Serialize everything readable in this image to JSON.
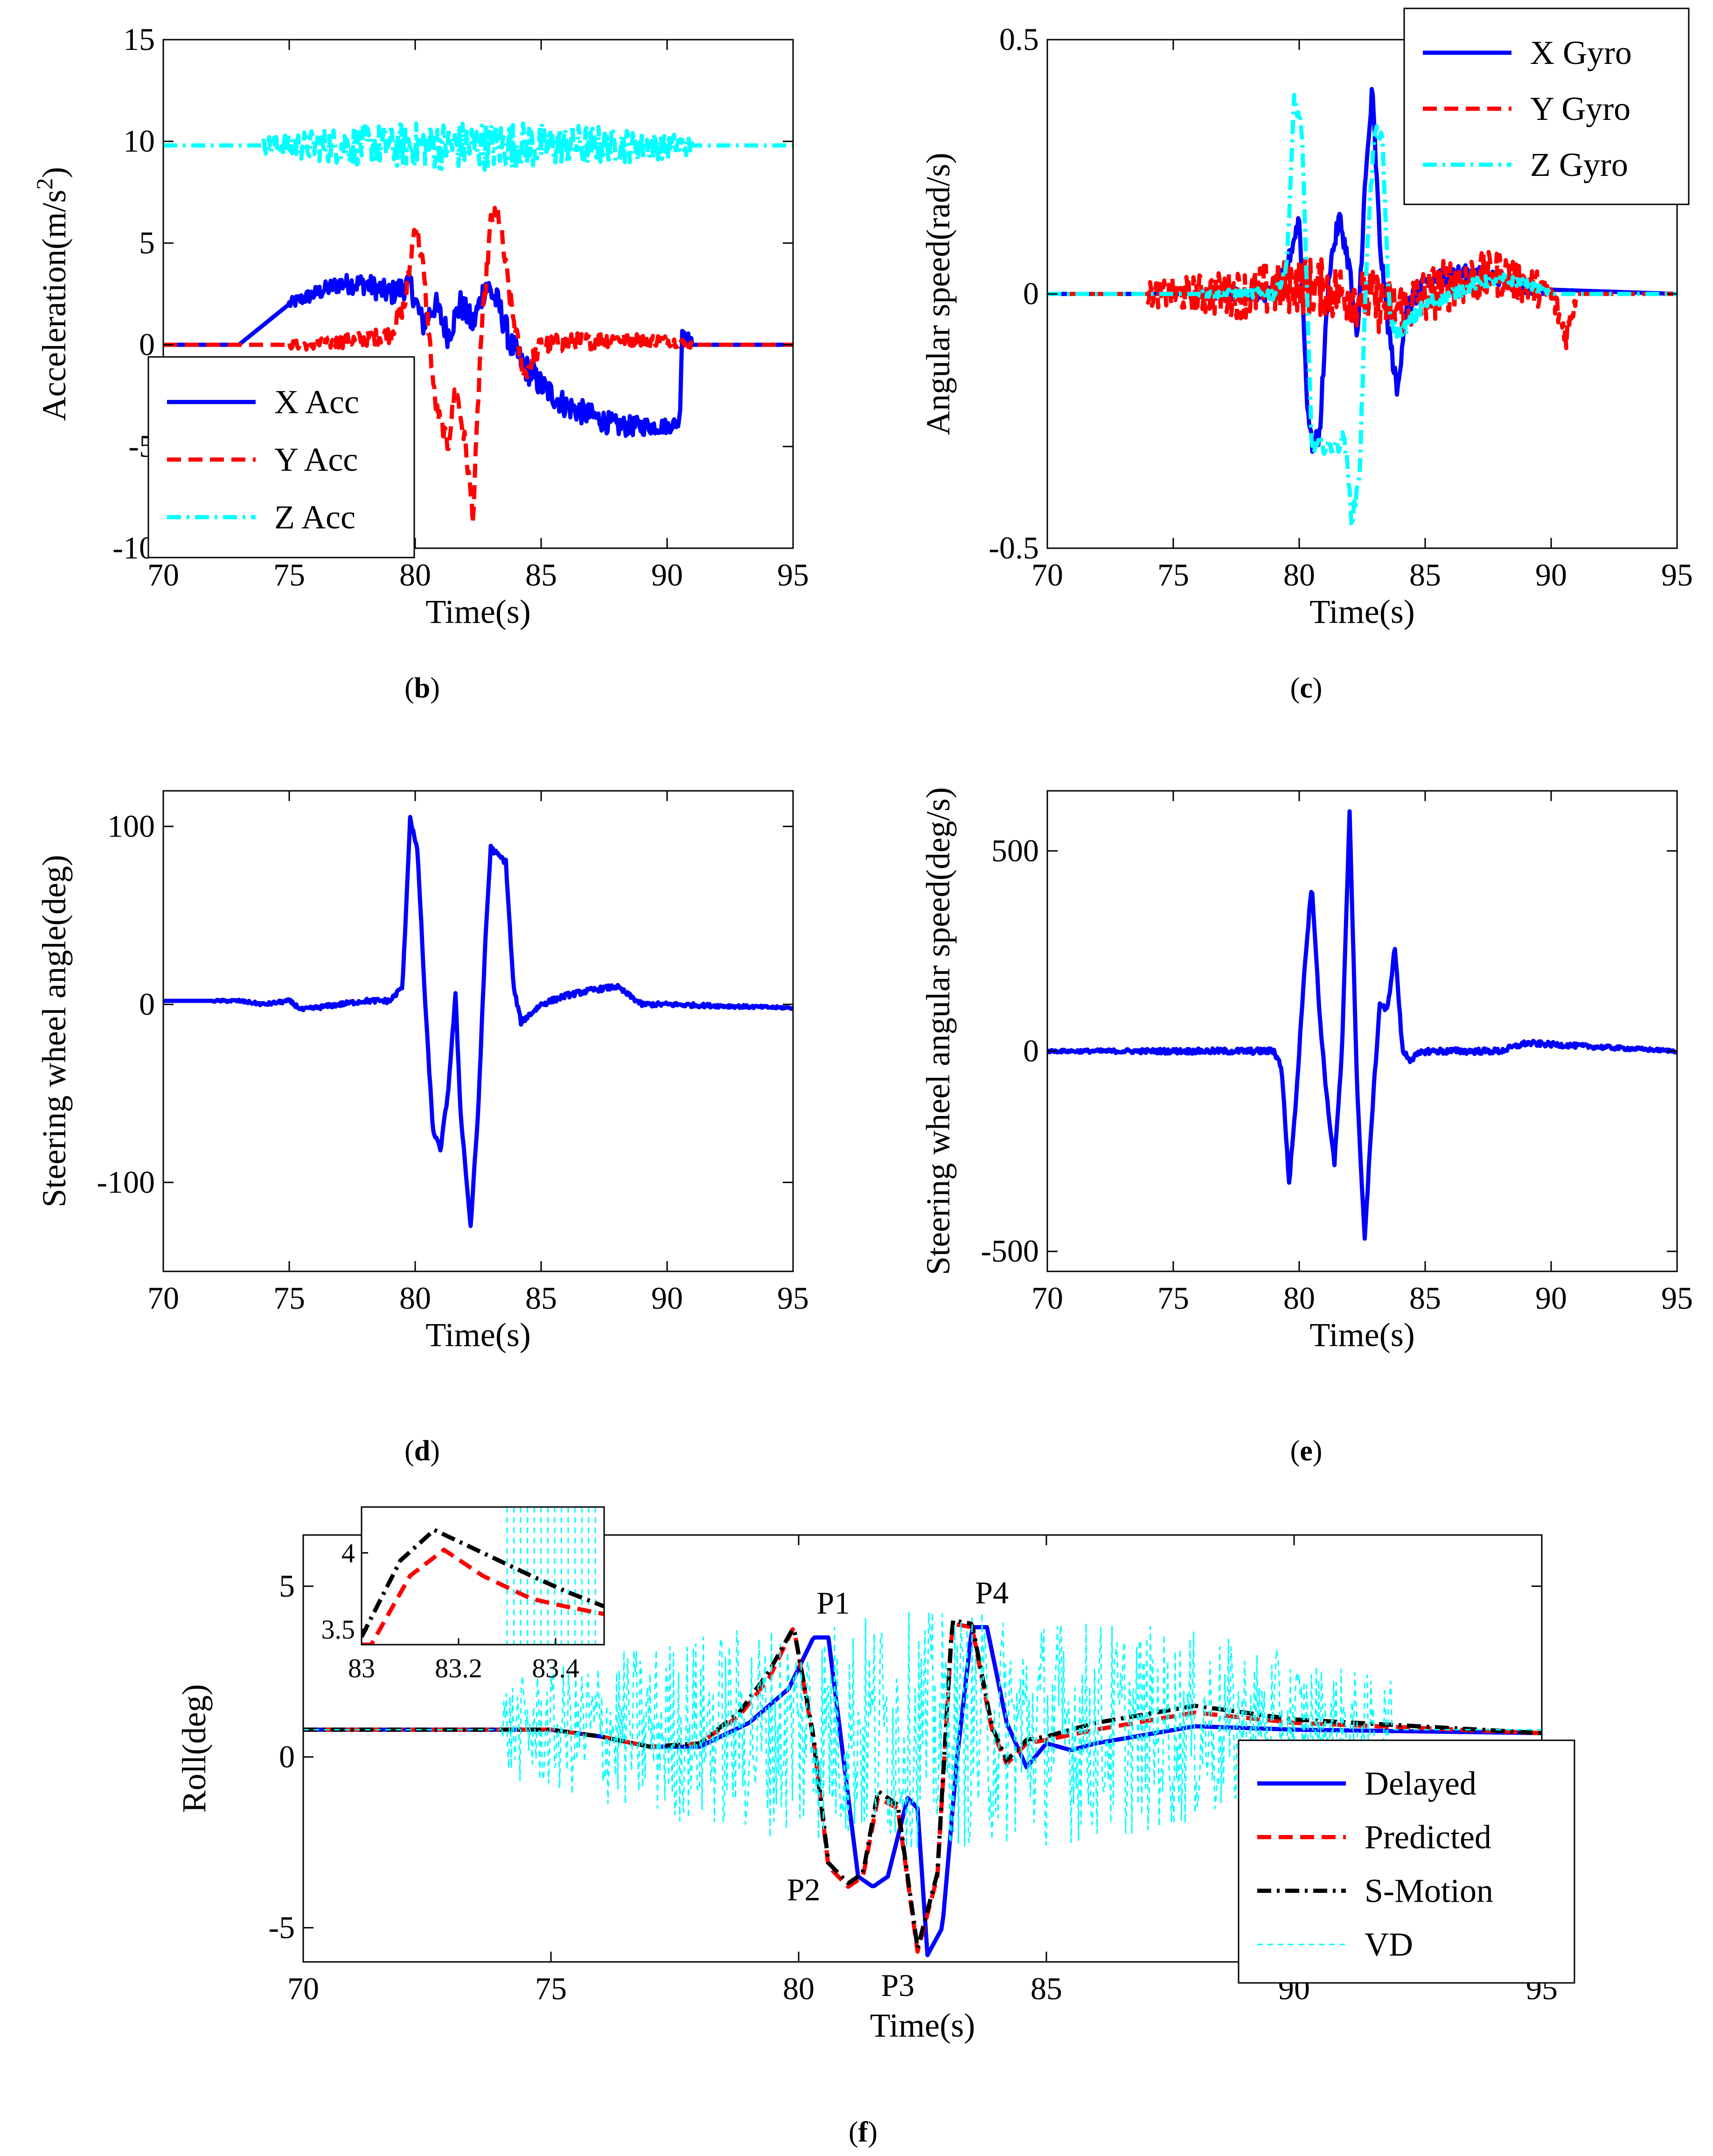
{
  "chart_data": [
    {
      "id": "b",
      "type": "line",
      "panel_label": "b",
      "xlabel": "Time(s)",
      "ylabel_text": "Acceleration(m/s",
      "ylabel_sup": "2",
      "ylabel_close": ")",
      "xlim": [
        70,
        95
      ],
      "ylim": [
        -10,
        15
      ],
      "xticks": [
        70,
        75,
        80,
        85,
        90,
        95
      ],
      "yticks": [
        -10,
        -5,
        0,
        5,
        10,
        15
      ],
      "legend_position": "lower-left",
      "series": [
        {
          "name": "X Acc",
          "color": "#0000ff",
          "style": "solid",
          "x": [
            70,
            73,
            74,
            75,
            76,
            77,
            78,
            79,
            79.8,
            80.3,
            80.8,
            81.3,
            81.8,
            82.3,
            82.8,
            83.3,
            83.8,
            84.3,
            85,
            86,
            87,
            88,
            89,
            90,
            90.5,
            90.6,
            91,
            95
          ],
          "y": [
            0,
            0,
            1,
            2,
            2.5,
            3,
            3,
            2.5,
            3,
            1,
            2,
            0.5,
            2,
            1,
            3,
            2,
            0,
            -1,
            -2,
            -3,
            -3.5,
            -4,
            -4,
            -4,
            -3.8,
            0.8,
            0,
            0
          ],
          "noise": 0.7,
          "noise_range": [
            75,
            91
          ]
        },
        {
          "name": "Y Acc",
          "color": "#ff0000",
          "style": "dashed",
          "x": [
            70,
            76,
            78,
            79,
            79.6,
            80,
            80.3,
            80.8,
            81.3,
            81.6,
            82,
            82.3,
            82.6,
            83,
            83.3,
            83.8,
            84.3,
            85,
            88,
            90,
            91,
            95
          ],
          "y": [
            0,
            0,
            0.3,
            0.5,
            2,
            6,
            4,
            -3,
            -5,
            -2,
            -5,
            -8.5,
            0,
            6,
            6.5,
            2,
            -1.5,
            0,
            0.3,
            0.2,
            0,
            0
          ],
          "noise": 0.5,
          "noise_range": [
            75,
            91
          ]
        },
        {
          "name": "Z Acc",
          "color": "#00ffff",
          "style": "dashdot",
          "x": [
            70,
            73,
            75,
            78,
            80,
            82,
            83,
            84,
            85,
            87,
            89,
            90,
            91,
            95
          ],
          "y": [
            9.8,
            9.8,
            9.8,
            9.8,
            9.8,
            9.8,
            9.8,
            9.8,
            9.8,
            9.8,
            9.8,
            9.8,
            9.8,
            9.8
          ],
          "noise": 1.2,
          "noise_range": [
            74,
            91
          ]
        }
      ]
    },
    {
      "id": "c",
      "type": "line",
      "panel_label": "c",
      "xlabel": "Time(s)",
      "ylabel_text": "Angular speed(rad/s)",
      "xlim": [
        70,
        95
      ],
      "ylim": [
        -0.5,
        0.5
      ],
      "xticks": [
        70,
        75,
        80,
        85,
        90,
        95
      ],
      "yticks": [
        -0.5,
        0,
        0.5
      ],
      "ytick_labels": [
        "-0.5",
        "0",
        "0.5"
      ],
      "legend_position": "top-right",
      "series": [
        {
          "name": "X Gyro",
          "color": "#0000ff",
          "style": "solid",
          "x": [
            70,
            79,
            79.5,
            80,
            80.3,
            80.5,
            80.8,
            81.2,
            81.6,
            82,
            82.3,
            82.6,
            82.9,
            83.2,
            83.5,
            83.9,
            84.2,
            85,
            86,
            87,
            88,
            89,
            95
          ],
          "y": [
            0,
            0,
            0.05,
            0.15,
            -0.2,
            -0.3,
            -0.28,
            0.05,
            0.15,
            0.05,
            -0.1,
            0.2,
            0.4,
            0.1,
            -0.05,
            -0.2,
            -0.03,
            0.02,
            0.04,
            0.04,
            0.03,
            0.01,
            0
          ],
          "noise": 0.02,
          "noise_range": [
            76,
            90
          ]
        },
        {
          "name": "Y Gyro",
          "color": "#ff0000",
          "style": "dashed",
          "x": [
            70,
            75,
            78,
            80,
            82,
            84,
            86,
            88,
            90,
            90.6,
            91,
            95
          ],
          "y": [
            0,
            0,
            0,
            0.02,
            0,
            -0.03,
            0.02,
            0.04,
            0,
            -0.08,
            0,
            0
          ],
          "noise": 0.06,
          "noise_range": [
            74,
            91
          ]
        },
        {
          "name": "Z Gyro",
          "color": "#00ffff",
          "style": "dashdot",
          "x": [
            70,
            79,
            79.5,
            79.8,
            80.1,
            80.5,
            81,
            81.5,
            81.8,
            82.1,
            82.4,
            82.7,
            83,
            83.3,
            83.6,
            84,
            84.5,
            85,
            86,
            87,
            88,
            89,
            90,
            95
          ],
          "y": [
            0,
            0,
            0.05,
            0.38,
            0.33,
            -0.3,
            -0.3,
            -0.3,
            -0.28,
            -0.45,
            -0.35,
            0.1,
            0.32,
            0.3,
            -0.05,
            -0.08,
            -0.05,
            -0.02,
            0,
            0.02,
            0.03,
            0.02,
            0,
            0
          ],
          "noise": 0.015,
          "noise_range": [
            76,
            90
          ]
        }
      ]
    },
    {
      "id": "d",
      "type": "line",
      "panel_label": "d",
      "xlabel": "Time(s)",
      "ylabel_text": "Steering wheel angle(deg)",
      "xlim": [
        70,
        95
      ],
      "ylim": [
        -150,
        120
      ],
      "xticks": [
        70,
        75,
        80,
        85,
        90,
        95
      ],
      "yticks": [
        -100,
        0,
        100
      ],
      "series": [
        {
          "name": "",
          "color": "#0000ff",
          "style": "solid",
          "x": [
            70,
            73,
            74,
            75,
            75.5,
            76,
            77,
            78,
            79,
            79.5,
            79.8,
            80.1,
            80.4,
            80.7,
            81,
            81.3,
            81.6,
            81.8,
            82.2,
            82.5,
            82.8,
            83,
            83.2,
            83.6,
            83.9,
            84.2,
            85,
            86,
            87,
            88,
            88.5,
            89,
            90,
            95
          ],
          "y": [
            2,
            2,
            0,
            2,
            -3,
            -2,
            0,
            2,
            2,
            10,
            105,
            85,
            0,
            -70,
            -82,
            -50,
            5,
            -60,
            -125,
            -60,
            40,
            88,
            85,
            80,
            10,
            -10,
            0,
            5,
            8,
            10,
            5,
            0,
            0,
            -2
          ],
          "noise": 1.5,
          "noise_range": [
            72,
            95
          ]
        }
      ]
    },
    {
      "id": "e",
      "type": "line",
      "panel_label": "e",
      "xlabel": "Time(s)",
      "ylabel_text": "Steering wheel angular speed(deg/s)",
      "xlim": [
        70,
        95
      ],
      "ylim": [
        -550,
        650
      ],
      "xticks": [
        70,
        75,
        80,
        85,
        90,
        95
      ],
      "yticks": [
        -500,
        0,
        500
      ],
      "series": [
        {
          "name": "",
          "color": "#0000ff",
          "style": "solid",
          "x": [
            70,
            79,
            79.3,
            79.6,
            79.9,
            80.2,
            80.5,
            80.8,
            81.1,
            81.4,
            81.7,
            82,
            82.3,
            82.6,
            82.9,
            83.2,
            83.5,
            83.8,
            84.1,
            84.4,
            85,
            88,
            89,
            95
          ],
          "y": [
            0,
            0,
            -40,
            -330,
            -100,
            200,
            420,
            100,
            -120,
            -280,
            0,
            600,
            -100,
            -470,
            -150,
            120,
            100,
            260,
            0,
            -20,
            0,
            0,
            20,
            0
          ],
          "noise": 8,
          "noise_range": [
            70,
            95
          ]
        }
      ]
    },
    {
      "id": "f",
      "type": "line",
      "panel_label": "f",
      "xlabel": "Time(s)",
      "ylabel_text": "Roll(deg)",
      "xlim": [
        70,
        95
      ],
      "ylim": [
        -6,
        6.5
      ],
      "xticks": [
        70,
        75,
        80,
        85,
        90,
        95
      ],
      "yticks": [
        -5,
        0,
        5
      ],
      "legend_position": "lower-right",
      "annotations": [
        {
          "text": "P1",
          "x": 80.7,
          "y": 4.2
        },
        {
          "text": "P2",
          "x": 80.1,
          "y": -4.2
        },
        {
          "text": "P3",
          "x": 82.0,
          "y": -7.0
        },
        {
          "text": "P4",
          "x": 83.9,
          "y": 4.5
        }
      ],
      "series": [
        {
          "name": "Delayed",
          "color": "#0000ff",
          "style": "solid",
          "x": [
            70,
            75,
            76,
            77,
            78,
            79,
            79.8,
            80.3,
            80.6,
            80.9,
            81.2,
            81.5,
            81.8,
            82.2,
            82.4,
            82.6,
            82.9,
            83.2,
            83.5,
            83.8,
            84.2,
            84.6,
            85,
            85.5,
            86,
            88,
            90,
            95
          ],
          "y": [
            0.8,
            0.8,
            0.6,
            0.3,
            0.3,
            1,
            2,
            3.5,
            3.5,
            0,
            -3.5,
            -3.8,
            -3.5,
            -1.2,
            -1.5,
            -5.8,
            -5,
            0,
            3.8,
            3.8,
            1,
            -0.3,
            0.4,
            0.2,
            0.4,
            0.9,
            0.8,
            0.7
          ],
          "noise": 0,
          "noise_range": [
            70,
            95
          ]
        },
        {
          "name": "Predicted",
          "color": "#ff0000",
          "style": "dashed",
          "x": [
            70,
            75,
            76,
            77,
            78,
            78.8,
            79.4,
            79.9,
            80.3,
            80.6,
            81,
            81.3,
            81.6,
            82,
            82.4,
            82.8,
            83.1,
            83.5,
            83.9,
            84.2,
            84.6,
            85,
            86,
            88,
            90,
            95
          ],
          "y": [
            0.8,
            0.8,
            0.6,
            0.3,
            0.4,
            1.2,
            2.3,
            3.8,
            0.5,
            -3.2,
            -3.8,
            -3.5,
            -1.2,
            -1.5,
            -5.7,
            -3.5,
            3.9,
            3.8,
            0.8,
            -0.2,
            0.4,
            0.5,
            0.8,
            1.3,
            1,
            0.7
          ],
          "noise": 0,
          "noise_range": [
            70,
            95
          ]
        },
        {
          "name": "S-Motion",
          "color": "#000000",
          "style": "dashdot",
          "x": [
            70,
            75,
            76,
            77,
            78,
            78.8,
            79.4,
            79.9,
            80.3,
            80.6,
            81,
            81.3,
            81.6,
            82,
            82.4,
            82.8,
            83.1,
            83.5,
            83.9,
            84.2,
            84.6,
            85,
            86,
            88,
            90,
            95
          ],
          "y": [
            0.8,
            0.8,
            0.6,
            0.3,
            0.4,
            1.3,
            2.5,
            3.8,
            0.6,
            -3.1,
            -3.7,
            -3.4,
            -1.0,
            -1.4,
            -5.6,
            -3.4,
            4.0,
            3.9,
            0.9,
            -0.1,
            0.5,
            0.6,
            1.0,
            1.5,
            1.1,
            0.7
          ],
          "noise": 0,
          "noise_range": [
            70,
            95
          ]
        },
        {
          "name": "VD",
          "color": "#00ffff",
          "style": "thin",
          "x": [
            70,
            95
          ],
          "y": [
            0.8,
            0.8
          ],
          "noise": 3.5,
          "noise_range": [
            74,
            92
          ]
        }
      ],
      "inset": {
        "xlim": [
          83,
          83.5
        ],
        "ylim": [
          3.4,
          4.3
        ],
        "xticks": [
          83,
          83.2,
          83.4
        ],
        "xtick_labels": [
          "83",
          "83.2",
          "83.4"
        ],
        "yticks": [
          3.5,
          4
        ],
        "ytick_labels": [
          "3.5",
          "4"
        ],
        "series": [
          {
            "color": "#ff0000",
            "style": "dashed",
            "x": [
              83.02,
              83.1,
              83.17,
              83.25,
              83.35,
              83.42,
              83.5
            ],
            "y": [
              3.4,
              3.85,
              4.02,
              3.85,
              3.7,
              3.65,
              3.6
            ]
          },
          {
            "color": "#000000",
            "style": "dashdot",
            "x": [
              83.0,
              83.08,
              83.15,
              83.25,
              83.35,
              83.42,
              83.5
            ],
            "y": [
              3.45,
              3.95,
              4.15,
              4.0,
              3.85,
              3.75,
              3.65
            ]
          }
        ]
      }
    }
  ]
}
